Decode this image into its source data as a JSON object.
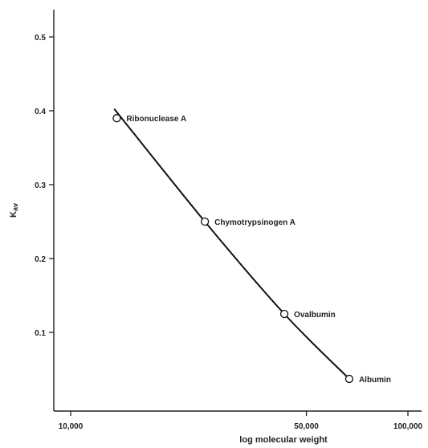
{
  "chart_data": {
    "type": "scatter",
    "title": "",
    "xlabel": "log molecular weight",
    "ylabel": "K",
    "ylabel_sub": "av",
    "x_scale": "log",
    "xlim": [
      10000,
      100000
    ],
    "ylim": [
      0,
      0.55
    ],
    "x_ticks": [
      {
        "value": 10000,
        "label": "10,000"
      },
      {
        "value": 50000,
        "label": "50,000"
      },
      {
        "value": 100000,
        "label": "100,000"
      }
    ],
    "y_ticks": [
      {
        "value": 0.1,
        "label": "0.1"
      },
      {
        "value": 0.2,
        "label": "0.2"
      },
      {
        "value": 0.3,
        "label": "0.3"
      },
      {
        "value": 0.4,
        "label": "0.4"
      },
      {
        "value": 0.5,
        "label": "0.5"
      }
    ],
    "points": [
      {
        "label": "Ribonuclease A",
        "x": 13700,
        "y": 0.39
      },
      {
        "label": "Chymotrypsinogen A",
        "x": 25000,
        "y": 0.25
      },
      {
        "label": "Ovalbumin",
        "x": 43000,
        "y": 0.125
      },
      {
        "label": "Albumin",
        "x": 67000,
        "y": 0.037
      }
    ],
    "fit_curve": [
      {
        "x": 13500,
        "y": 0.402
      },
      {
        "x": 25000,
        "y": 0.25
      },
      {
        "x": 43000,
        "y": 0.125
      },
      {
        "x": 67000,
        "y": 0.037
      }
    ],
    "grid": false,
    "legend": "none"
  }
}
